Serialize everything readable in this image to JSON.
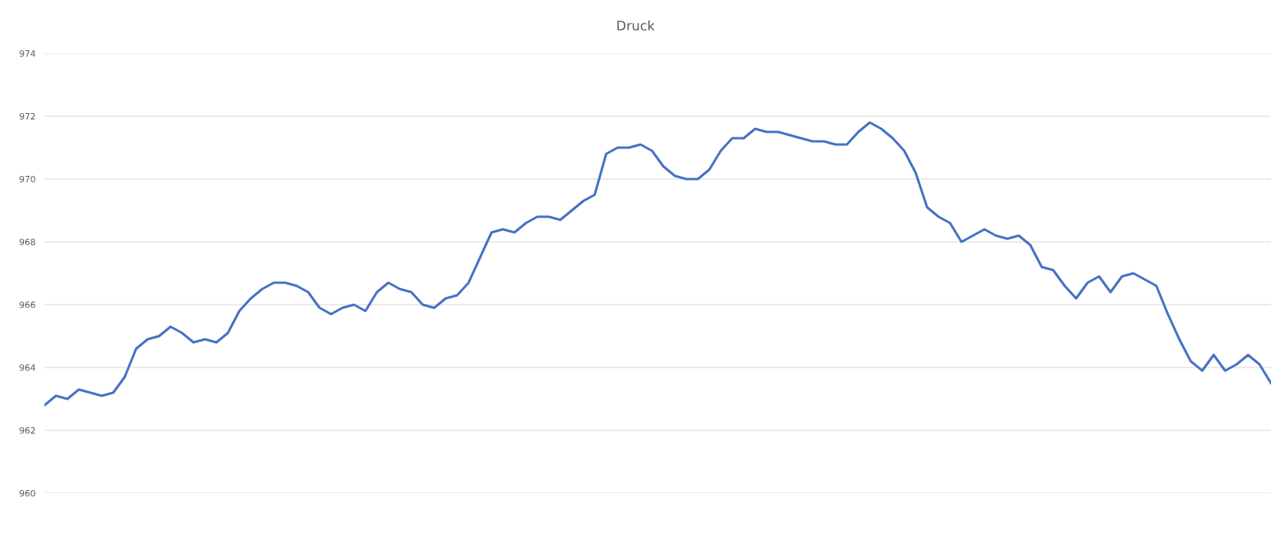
{
  "chart_data": {
    "type": "line",
    "title": "Druck",
    "categories": [
      null,
      null,
      null,
      null,
      null,
      null,
      null,
      null,
      null,
      null,
      null,
      null,
      null,
      null,
      null,
      null,
      null,
      null,
      null,
      null,
      null,
      null,
      null,
      null,
      null,
      null,
      null,
      null,
      null,
      null,
      null,
      null,
      null,
      null,
      null,
      null,
      null,
      null,
      null,
      null,
      null,
      null,
      null,
      null,
      null,
      null,
      null,
      null,
      null,
      null,
      null,
      null,
      null,
      null,
      null,
      null,
      null,
      null,
      null,
      null,
      null,
      null,
      null,
      null,
      null,
      null,
      null,
      null,
      null,
      null,
      null,
      null,
      null,
      null,
      null,
      null,
      null,
      null,
      null,
      null,
      null,
      null,
      null,
      null,
      null,
      null,
      null,
      null,
      null,
      null,
      null,
      null,
      null,
      null,
      null,
      null,
      null,
      null,
      null,
      null,
      null,
      null,
      null,
      null,
      null,
      null,
      null,
      null
    ],
    "series": [
      {
        "color": "#4472c4",
        "values": [
          962.8,
          963.1,
          963.0,
          963.3,
          963.2,
          963.1,
          963.2,
          963.7,
          964.6,
          964.9,
          965.0,
          965.3,
          965.1,
          964.8,
          964.9,
          964.8,
          965.1,
          965.8,
          966.2,
          966.5,
          966.7,
          966.7,
          966.6,
          966.4,
          965.9,
          965.7,
          965.9,
          966.0,
          965.8,
          966.4,
          966.7,
          966.5,
          966.4,
          966.0,
          965.9,
          966.2,
          966.3,
          966.7,
          967.5,
          968.3,
          968.4,
          968.3,
          968.6,
          968.8,
          968.8,
          968.7,
          969.0,
          969.3,
          969.5,
          970.8,
          971.0,
          971.0,
          971.1,
          970.9,
          970.4,
          970.1,
          970.0,
          970.0,
          970.3,
          970.9,
          971.3,
          971.3,
          971.6,
          971.5,
          971.5,
          971.4,
          971.3,
          971.2,
          971.2,
          971.1,
          971.1,
          971.5,
          971.8,
          971.6,
          971.3,
          970.9,
          970.2,
          969.1,
          968.8,
          968.6,
          968.0,
          968.2,
          968.4,
          968.2,
          968.1,
          968.2,
          967.9,
          967.2,
          967.1,
          966.6,
          966.2,
          966.7,
          966.9,
          966.4,
          966.9,
          967.0,
          966.8,
          966.6,
          965.7,
          964.9,
          964.2,
          963.9,
          964.4,
          963.9,
          964.1,
          964.4,
          964.1,
          963.5
        ]
      }
    ],
    "ylim": [
      960,
      974
    ],
    "yticks": [
      960,
      962,
      964,
      966,
      968,
      970,
      972,
      974
    ],
    "grid": "y",
    "tick_labels": "y",
    "marker": "none",
    "line_style": "solid"
  }
}
